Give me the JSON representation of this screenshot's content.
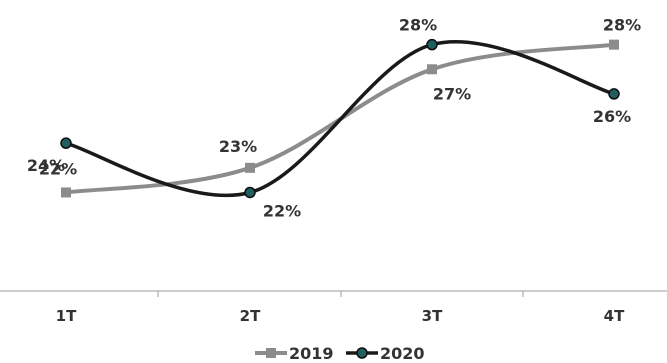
{
  "chart_data": {
    "type": "line",
    "title": "",
    "xlabel": "",
    "ylabel": "",
    "categories": [
      "1T",
      "2T",
      "3T",
      "4T"
    ],
    "ylim": [
      18,
      29
    ],
    "grid": false,
    "legend_position": "bottom",
    "smooth": true,
    "series": [
      {
        "name": "2019",
        "color": "#8c8c8c",
        "marker": "square",
        "values": [
          22,
          23,
          27,
          28
        ],
        "labels": [
          "22%",
          "23%",
          "27%",
          "28%"
        ]
      },
      {
        "name": "2020",
        "color": "#1a1a1a",
        "marker": "circle",
        "marker_color": "#1f5f5f",
        "values": [
          24,
          22,
          28,
          26
        ],
        "labels": [
          "24%",
          "22%",
          "28%",
          "26%"
        ]
      }
    ]
  }
}
